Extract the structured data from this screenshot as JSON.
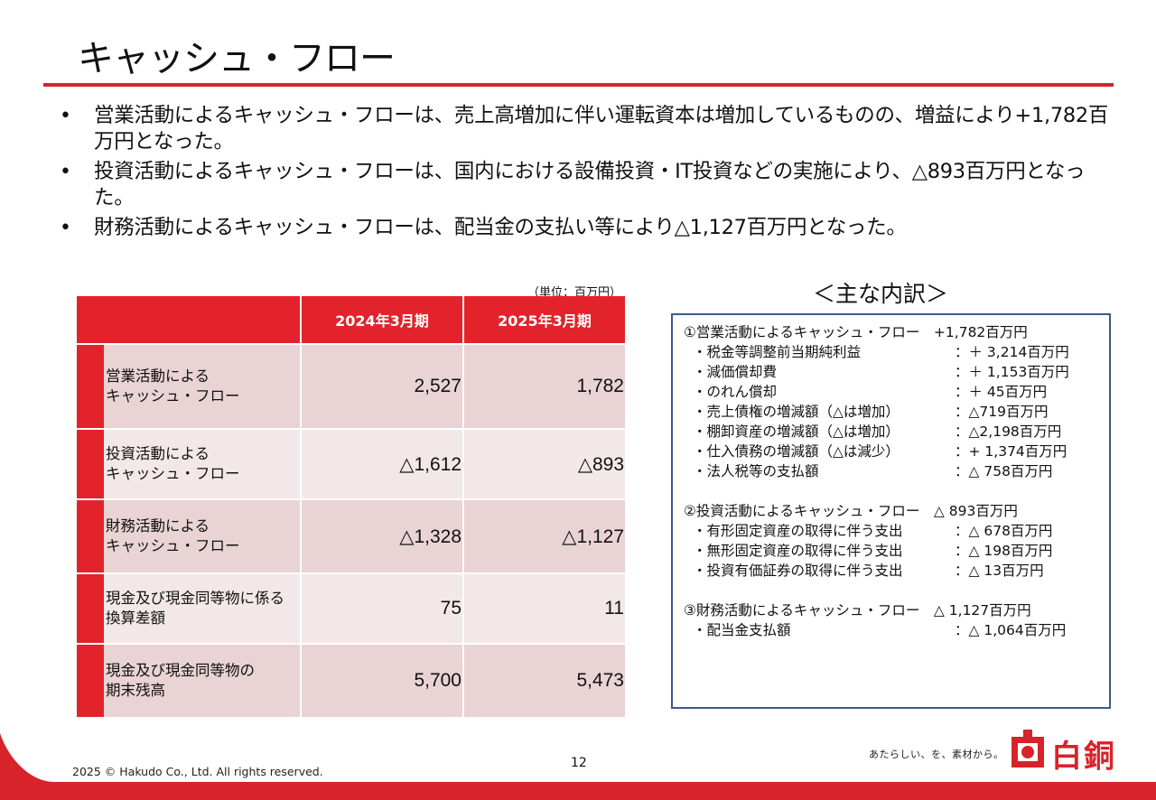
{
  "title": "キャッシュ・フロー",
  "bullets": [
    "営業活動によるキャッシュ・フローは、売上高増加に伴い運転資本は増加しているものの、増益により+1,782百万円となった。",
    "投資活動によるキャッシュ・フローは、国内における設備投資・IT投資などの実施により、△893百万円となった。",
    "財務活動によるキャッシュ・フローは、配当金の支払い等により△1,127百万円となった。"
  ],
  "bullet_marker": "•",
  "table": {
    "unit": "（単位：百万円）",
    "columns": [
      "2024年3月期",
      "2025年3月期"
    ],
    "rows": [
      {
        "label1": "営業活動による",
        "label2": "キャッシュ・フロー",
        "v2024": "2,527",
        "v2025": "1,782"
      },
      {
        "label1": "投資活動による",
        "label2": "キャッシュ・フロー",
        "v2024": "△1,612",
        "v2025": "△893"
      },
      {
        "label1": "財務活動による",
        "label2": "キャッシュ・フロー",
        "v2024": "△1,328",
        "v2025": "△1,127"
      },
      {
        "label1": "現金及び現金同等物に係る",
        "label2": "換算差額",
        "v2024": "75",
        "v2025": "11"
      },
      {
        "label1": "現金及び現金同等物の",
        "label2": "期末残高",
        "v2024": "5,700",
        "v2025": "5,473"
      }
    ]
  },
  "breakdown": {
    "title": "＜主な内訳＞",
    "sections": [
      {
        "heading": "①営業活動によるキャッシュ・フロー　+1,782百万円",
        "items": [
          {
            "label": "・税金等調整前当期純利益",
            "value": "：＋ 3,214百万円"
          },
          {
            "label": "・減価償却費",
            "value": "：＋ 1,153百万円"
          },
          {
            "label": "・のれん償却",
            "value": "：＋ 45百万円"
          },
          {
            "label": "・売上債権の増減額（△は増加）",
            "value": "：△719百万円"
          },
          {
            "label": "・棚卸資産の増減額（△は増加）",
            "value": "：△2,198百万円"
          },
          {
            "label": "・仕入債務の増減額（△は減少）",
            "value": "：+ 1,374百万円"
          },
          {
            "label": "・法人税等の支払額",
            "value": "：△ 758百万円"
          }
        ]
      },
      {
        "heading": "②投資活動によるキャッシュ・フロー　△ 893百万円",
        "items": [
          {
            "label": "・有形固定資産の取得に伴う支出",
            "value": "：△ 678百万円"
          },
          {
            "label": "・無形固定資産の取得に伴う支出",
            "value": "：△ 198百万円"
          },
          {
            "label": "・投資有価証券の取得に伴う支出",
            "value": "：△ 13百万円"
          }
        ]
      },
      {
        "heading": "③財務活動によるキャッシュ・フロー　△ 1,127百万円",
        "items": [
          {
            "label": "・配当金支払額",
            "value": "：△ 1,064百万円"
          }
        ]
      }
    ]
  },
  "footer": {
    "copyright": "2025 © Hakudo Co., Ltd. All rights reserved.",
    "page": "12",
    "tagline": "あたらしい、を、素材から。",
    "logo_text": "白銅",
    "brand_color": "#d8232a"
  }
}
